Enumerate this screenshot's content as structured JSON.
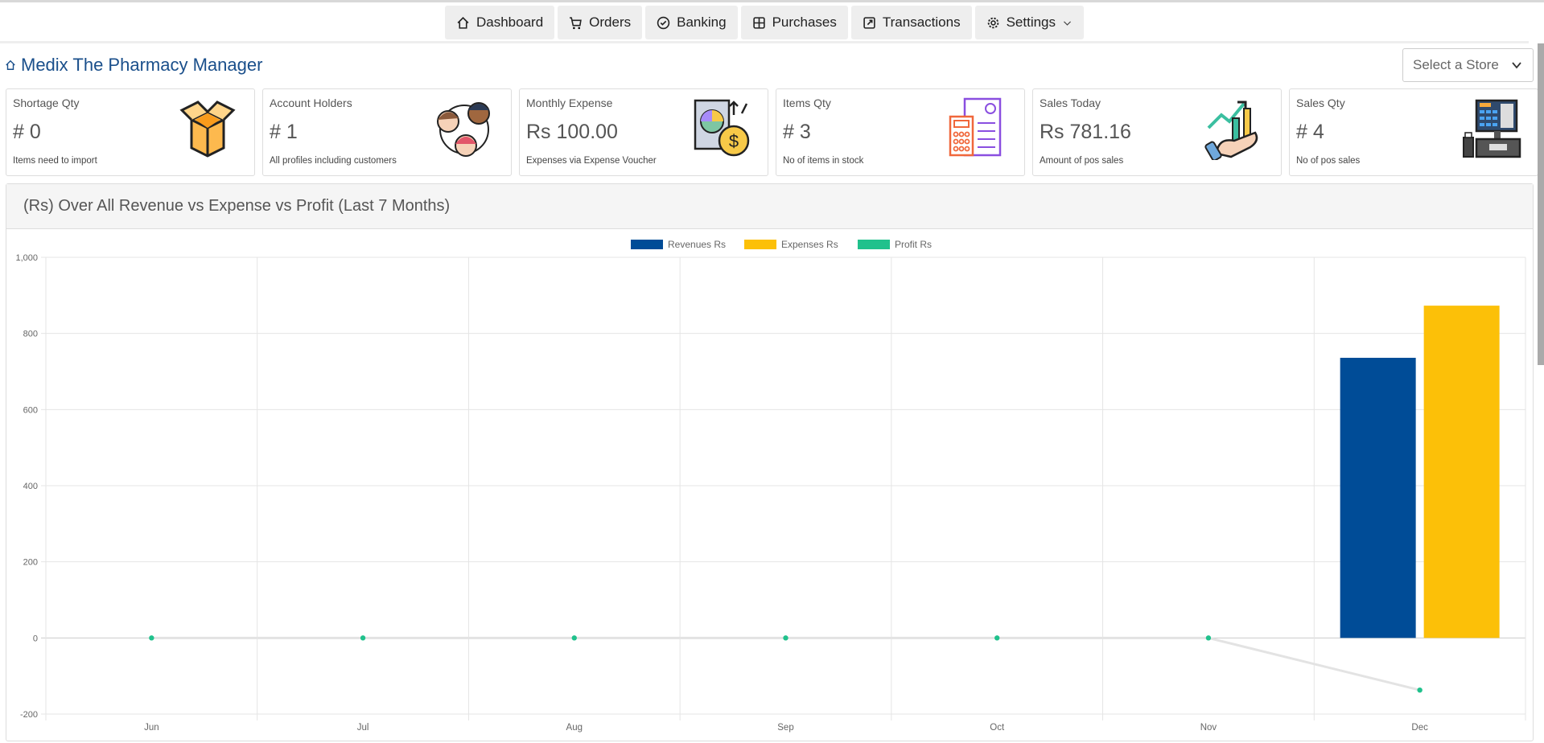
{
  "nav": [
    {
      "label": "Dashboard",
      "icon": "home-icon"
    },
    {
      "label": "Orders",
      "icon": "cart-icon"
    },
    {
      "label": "Banking",
      "icon": "check-circle-icon"
    },
    {
      "label": "Purchases",
      "icon": "grid-icon"
    },
    {
      "label": "Transactions",
      "icon": "external-link-icon"
    },
    {
      "label": "Settings",
      "icon": "gear-icon"
    }
  ],
  "header": {
    "title": "Medix The Pharmacy Manager",
    "store_placeholder": "Select a Store"
  },
  "cards": [
    {
      "label": "Shortage Qty",
      "value": "# 0",
      "sub": "Items need to import",
      "icon": "open-box-icon"
    },
    {
      "label": "Account Holders",
      "value": "# 1",
      "sub": "All profiles including customers",
      "icon": "people-icon"
    },
    {
      "label": "Monthly Expense",
      "value": "Rs 100.00",
      "sub": "Expenses via Expense Voucher",
      "icon": "expense-report-icon"
    },
    {
      "label": "Items Qty",
      "value": "# 3",
      "sub": "No of items in stock",
      "icon": "inventory-list-icon"
    },
    {
      "label": "Sales Today",
      "value": "Rs 781.16",
      "sub": "Amount of pos sales",
      "icon": "growth-chart-hand-icon"
    },
    {
      "label": "Sales Qty",
      "value": "# 4",
      "sub": "No of pos sales",
      "icon": "cash-register-icon"
    }
  ],
  "panel": {
    "title": "(Rs) Over All Revenue vs Expense vs Profit (Last 7 Months)"
  },
  "chart_data": {
    "type": "bar",
    "categories": [
      "Jun",
      "Jul",
      "Aug",
      "Sep",
      "Oct",
      "Nov",
      "Dec"
    ],
    "series": [
      {
        "name": "Revenues Rs",
        "type": "bar",
        "color": "#004c97",
        "values": [
          0,
          0,
          0,
          0,
          0,
          0,
          736
        ]
      },
      {
        "name": "Expenses Rs",
        "type": "bar",
        "color": "#fcc008",
        "values": [
          0,
          0,
          0,
          0,
          0,
          0,
          873
        ]
      },
      {
        "name": "Profit Rs",
        "type": "line",
        "color": "#20c18c",
        "values": [
          0,
          0,
          0,
          0,
          0,
          0,
          -137
        ]
      }
    ],
    "ylim": [
      -200,
      1000
    ],
    "yticks": [
      "-200",
      "0",
      "200",
      "400",
      "600",
      "800",
      "1,000"
    ],
    "grid": true,
    "legend": "top"
  }
}
